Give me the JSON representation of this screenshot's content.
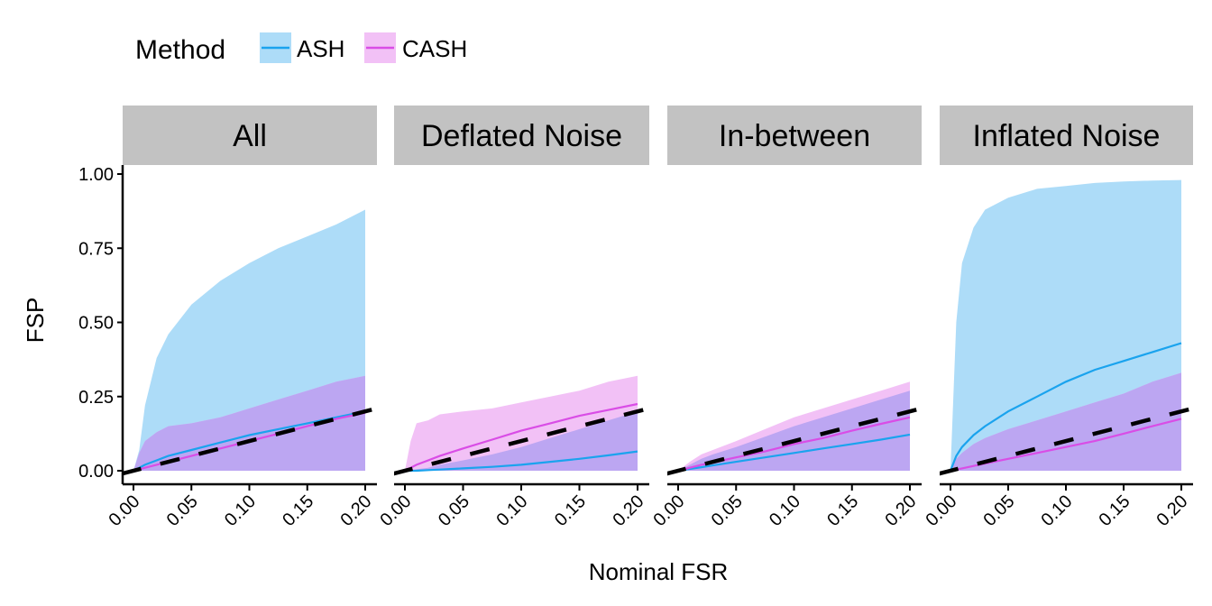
{
  "chart_data": {
    "type": "area",
    "title": "",
    "xlabel": "Nominal FSR",
    "ylabel": "FSP",
    "xlim": [
      0,
      0.2
    ],
    "ylim": [
      0,
      1
    ],
    "x_ticks": [
      "0.00",
      "0.05",
      "0.10",
      "0.15",
      "0.20"
    ],
    "y_ticks": [
      "0.00",
      "0.25",
      "0.50",
      "0.75",
      "1.00"
    ],
    "grid": false,
    "legend": {
      "title": "Method",
      "placement": "top-left",
      "entries": [
        {
          "name": "ASH",
          "line_color": "#1aa3ee",
          "fill_color": "#addcf8"
        },
        {
          "name": "CASH",
          "line_color": "#d94de6",
          "fill_color": "#f2c1f6"
        }
      ]
    },
    "overlap_fill_color": "#bca6f2",
    "reference_line": {
      "style": "dashed",
      "color": "#000000",
      "slope": 1,
      "intercept": 0
    },
    "x": [
      0.0,
      0.005,
      0.01,
      0.02,
      0.03,
      0.05,
      0.075,
      0.1,
      0.125,
      0.15,
      0.175,
      0.2
    ],
    "panels": [
      {
        "label": "All",
        "series": [
          {
            "name": "ASH",
            "mean": [
              0.0,
              0.01,
              0.02,
              0.035,
              0.05,
              0.07,
              0.095,
              0.12,
              0.14,
              0.16,
              0.18,
              0.2
            ],
            "upper": [
              0.0,
              0.07,
              0.22,
              0.38,
              0.46,
              0.56,
              0.64,
              0.7,
              0.75,
              0.79,
              0.83,
              0.88
            ],
            "lower": [
              0,
              0,
              0,
              0,
              0,
              0,
              0,
              0,
              0,
              0,
              0,
              0
            ]
          },
          {
            "name": "CASH",
            "mean": [
              0.0,
              0.005,
              0.01,
              0.02,
              0.03,
              0.05,
              0.075,
              0.1,
              0.125,
              0.15,
              0.175,
              0.195
            ],
            "upper": [
              0.0,
              0.06,
              0.1,
              0.13,
              0.15,
              0.16,
              0.18,
              0.21,
              0.24,
              0.27,
              0.3,
              0.32
            ],
            "lower": [
              0,
              0,
              0,
              0,
              0,
              0,
              0,
              0,
              0,
              0,
              0,
              0
            ]
          }
        ]
      },
      {
        "label": "Deflated Noise",
        "series": [
          {
            "name": "ASH",
            "mean": [
              0.0,
              0.0,
              0.0,
              0.002,
              0.004,
              0.008,
              0.013,
              0.02,
              0.03,
              0.04,
              0.052,
              0.065
            ],
            "upper": [
              0.0,
              0.0,
              0.005,
              0.01,
              0.02,
              0.035,
              0.055,
              0.08,
              0.11,
              0.14,
              0.17,
              0.2
            ],
            "lower": [
              0,
              0,
              0,
              0,
              0,
              0,
              0,
              0,
              0,
              0,
              0,
              0
            ]
          },
          {
            "name": "CASH",
            "mean": [
              0.0,
              0.01,
              0.02,
              0.035,
              0.05,
              0.075,
              0.105,
              0.135,
              0.16,
              0.185,
              0.205,
              0.225
            ],
            "upper": [
              0.0,
              0.1,
              0.16,
              0.17,
              0.19,
              0.2,
              0.21,
              0.23,
              0.25,
              0.27,
              0.3,
              0.32
            ],
            "lower": [
              0,
              0,
              0,
              0,
              0,
              0,
              0,
              0,
              0,
              0,
              0,
              0
            ]
          }
        ]
      },
      {
        "label": "In-between",
        "series": [
          {
            "name": "ASH",
            "mean": [
              0.0,
              0.003,
              0.006,
              0.012,
              0.018,
              0.03,
              0.045,
              0.06,
              0.075,
              0.09,
              0.105,
              0.122
            ],
            "upper": [
              0.0,
              0.01,
              0.02,
              0.04,
              0.055,
              0.08,
              0.115,
              0.15,
              0.18,
              0.21,
              0.24,
              0.27
            ],
            "lower": [
              0,
              0,
              0,
              0,
              0,
              0,
              0,
              0,
              0,
              0,
              0,
              0
            ]
          },
          {
            "name": "CASH",
            "mean": [
              0.0,
              0.005,
              0.01,
              0.02,
              0.028,
              0.045,
              0.065,
              0.09,
              0.11,
              0.135,
              0.158,
              0.18
            ],
            "upper": [
              0.0,
              0.015,
              0.03,
              0.055,
              0.07,
              0.1,
              0.14,
              0.18,
              0.21,
              0.24,
              0.27,
              0.3
            ],
            "lower": [
              0,
              0,
              0,
              0,
              0,
              0,
              0,
              0,
              0,
              0,
              0,
              0
            ]
          }
        ]
      },
      {
        "label": "Inflated Noise",
        "series": [
          {
            "name": "ASH",
            "mean": [
              0.0,
              0.05,
              0.08,
              0.12,
              0.15,
              0.2,
              0.25,
              0.3,
              0.34,
              0.37,
              0.4,
              0.43
            ],
            "upper": [
              0.0,
              0.5,
              0.7,
              0.82,
              0.88,
              0.92,
              0.95,
              0.96,
              0.97,
              0.975,
              0.978,
              0.98
            ],
            "lower": [
              0,
              0,
              0,
              0,
              0,
              0,
              0,
              0,
              0,
              0,
              0,
              0
            ]
          },
          {
            "name": "CASH",
            "mean": [
              0.0,
              0.004,
              0.008,
              0.016,
              0.024,
              0.04,
              0.06,
              0.08,
              0.1,
              0.125,
              0.15,
              0.175
            ],
            "upper": [
              0.0,
              0.04,
              0.06,
              0.09,
              0.11,
              0.14,
              0.17,
              0.2,
              0.23,
              0.26,
              0.3,
              0.33
            ],
            "lower": [
              0,
              0,
              0,
              0,
              0,
              0,
              0,
              0,
              0,
              0,
              0,
              0
            ]
          }
        ]
      }
    ]
  }
}
